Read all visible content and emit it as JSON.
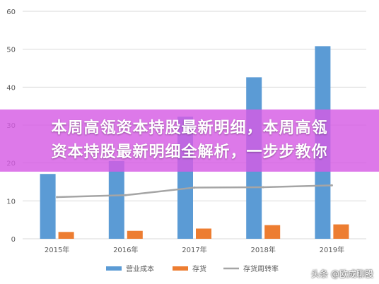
{
  "banner": {
    "line1": "本周高瓴资本持股最新明细，本周高瓴",
    "line2": "资本持股最新明细全解析，一步步教你"
  },
  "watermark": "头条 @欧成聊股",
  "colors": {
    "bar1": "#5b9bd5",
    "bar2": "#ed7d31",
    "line": "#a5a5a5",
    "grid": "#d9d9d9",
    "axis_text": "#595959"
  },
  "chart_data": {
    "type": "bar",
    "categories": [
      "2015年",
      "2016年",
      "2017年",
      "2018年",
      "2019年"
    ],
    "series": [
      {
        "name": "营业成本",
        "kind": "bar",
        "values": [
          17.1,
          20.5,
          32.2,
          42.6,
          50.8
        ]
      },
      {
        "name": "存货",
        "kind": "bar",
        "values": [
          1.8,
          2.1,
          2.7,
          3.6,
          3.8
        ]
      },
      {
        "name": "存货周转率",
        "kind": "line",
        "values": [
          11.0,
          11.5,
          13.5,
          13.6,
          14.1
        ]
      }
    ],
    "ylim": [
      0,
      60
    ],
    "yticks": [
      0,
      10,
      20,
      30,
      40,
      50,
      60
    ],
    "grid": true,
    "legend_position": "bottom"
  }
}
